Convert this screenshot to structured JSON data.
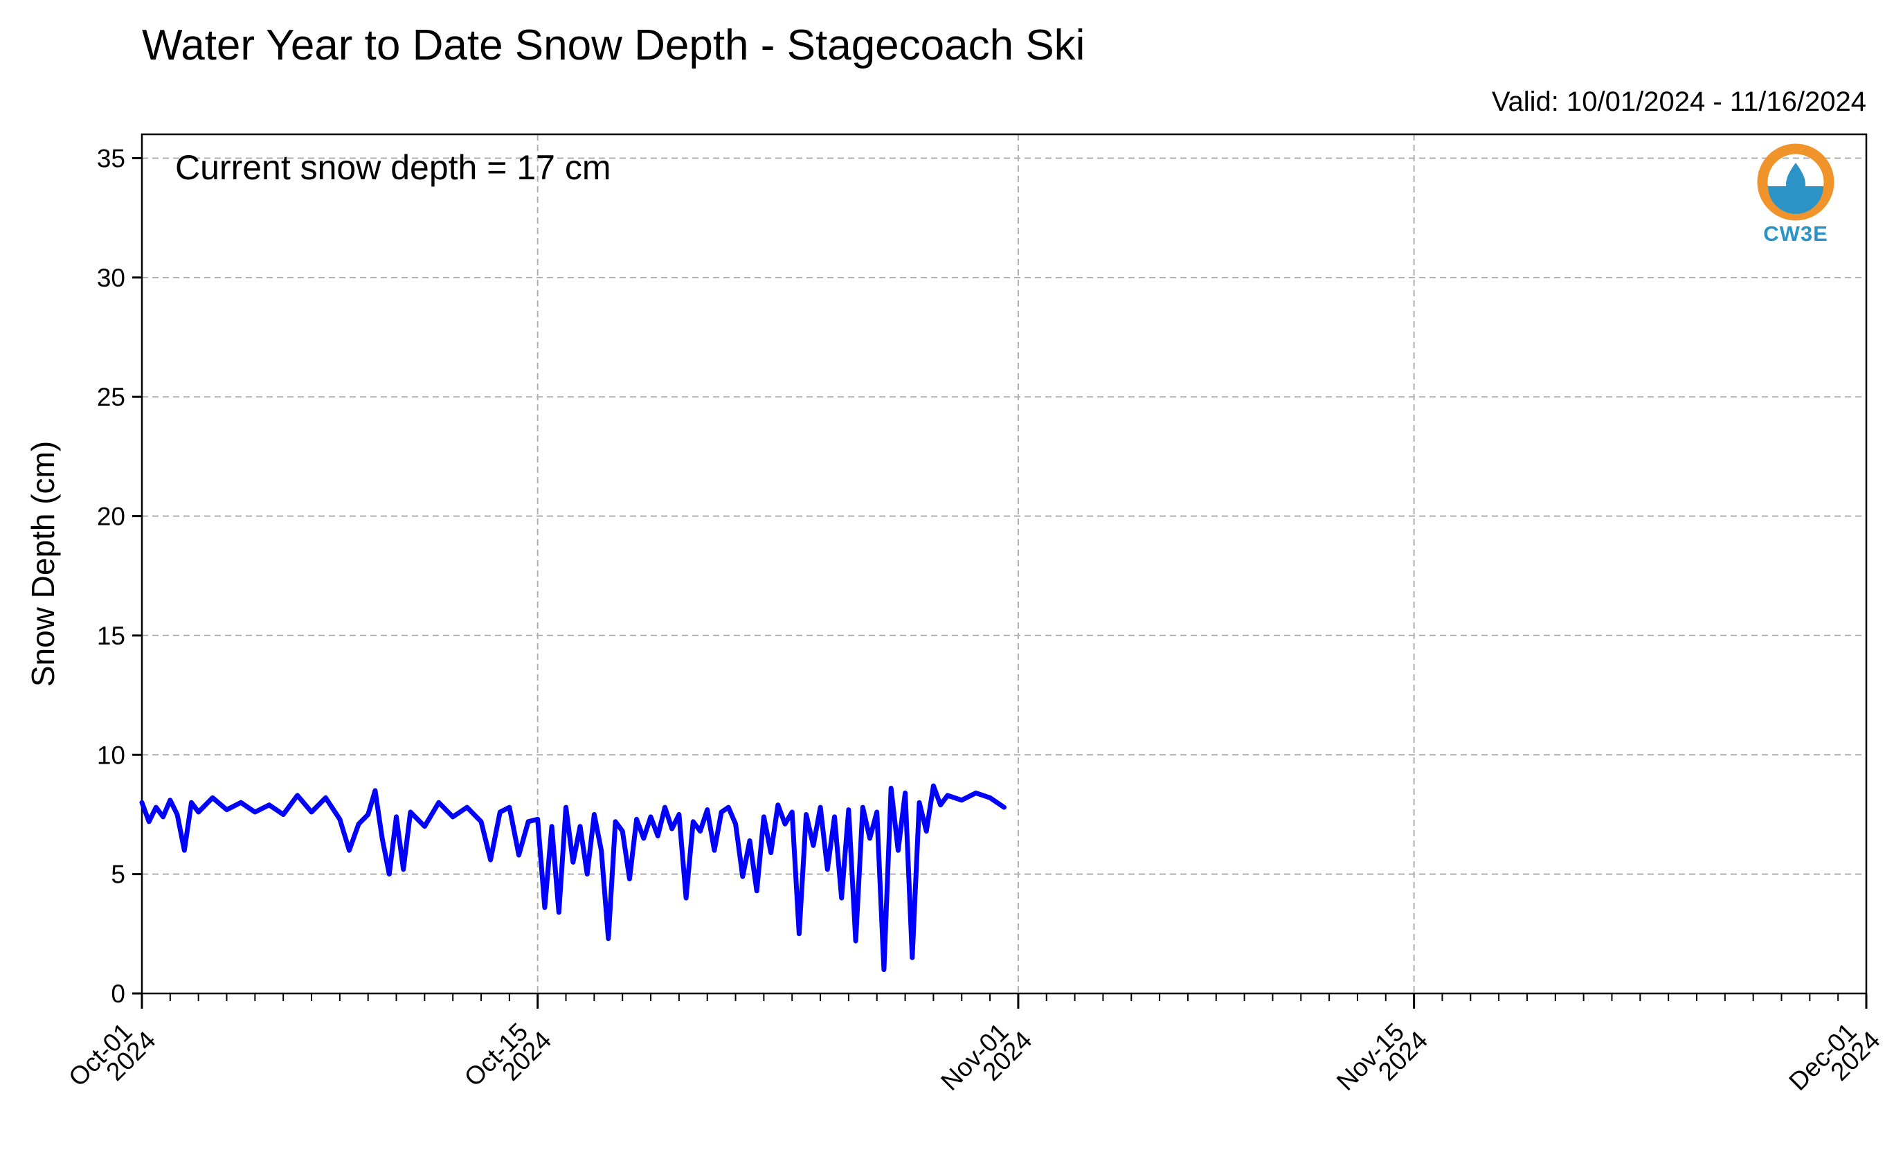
{
  "title": "Water Year to Date Snow Depth - Stagecoach Ski",
  "valid_text": "Valid: 10/01/2024 - 11/16/2024",
  "annotation": "Current snow depth = 17 cm",
  "logo_text": "CW3E",
  "colors": {
    "series": "#0000ff",
    "grid": "#b0b0b0",
    "logo_orange": "#f0932b",
    "logo_blue": "#2b93c6"
  },
  "chart_data": {
    "type": "line",
    "title": "Water Year to Date Snow Depth - Stagecoach Ski",
    "ylabel": "Snow Depth (cm)",
    "xlabel": "",
    "ylim": [
      0,
      36
    ],
    "xlim": [
      "2024-10-01",
      "2024-12-01"
    ],
    "grid": true,
    "y_ticks": [
      0,
      5,
      10,
      15,
      20,
      25,
      30,
      35
    ],
    "x_ticks": [
      {
        "date": "2024-10-01",
        "line1": "Oct-01",
        "line2": "2024"
      },
      {
        "date": "2024-10-15",
        "line1": "Oct-15",
        "line2": "2024"
      },
      {
        "date": "2024-11-01",
        "line1": "Nov-01",
        "line2": "2024"
      },
      {
        "date": "2024-11-15",
        "line1": "Nov-15",
        "line2": "2024"
      },
      {
        "date": "2024-12-01",
        "line1": "Dec-01",
        "line2": "2024"
      }
    ],
    "series": [
      {
        "values": [
          [
            "2024-10-01 00:00",
            8.0
          ],
          [
            "2024-10-01 06:00",
            7.2
          ],
          [
            "2024-10-01 12:00",
            7.8
          ],
          [
            "2024-10-01 18:00",
            7.4
          ],
          [
            "2024-10-02 00:00",
            8.1
          ],
          [
            "2024-10-02 06:00",
            7.5
          ],
          [
            "2024-10-02 12:00",
            6.0
          ],
          [
            "2024-10-02 18:00",
            8.0
          ],
          [
            "2024-10-03 00:00",
            7.6
          ],
          [
            "2024-10-03 12:00",
            8.2
          ],
          [
            "2024-10-04 00:00",
            7.7
          ],
          [
            "2024-10-04 12:00",
            8.0
          ],
          [
            "2024-10-05 00:00",
            7.6
          ],
          [
            "2024-10-05 12:00",
            7.9
          ],
          [
            "2024-10-06 00:00",
            7.5
          ],
          [
            "2024-10-06 12:00",
            8.3
          ],
          [
            "2024-10-07 00:00",
            7.6
          ],
          [
            "2024-10-07 12:00",
            8.2
          ],
          [
            "2024-10-08 00:00",
            7.3
          ],
          [
            "2024-10-08 08:00",
            6.0
          ],
          [
            "2024-10-08 16:00",
            7.1
          ],
          [
            "2024-10-09 00:00",
            7.5
          ],
          [
            "2024-10-09 06:00",
            8.5
          ],
          [
            "2024-10-09 12:00",
            6.5
          ],
          [
            "2024-10-09 18:00",
            5.0
          ],
          [
            "2024-10-10 00:00",
            7.4
          ],
          [
            "2024-10-10 06:00",
            5.2
          ],
          [
            "2024-10-10 12:00",
            7.6
          ],
          [
            "2024-10-11 00:00",
            7.0
          ],
          [
            "2024-10-11 12:00",
            8.0
          ],
          [
            "2024-10-12 00:00",
            7.4
          ],
          [
            "2024-10-12 12:00",
            7.8
          ],
          [
            "2024-10-13 00:00",
            7.2
          ],
          [
            "2024-10-13 08:00",
            5.6
          ],
          [
            "2024-10-13 16:00",
            7.6
          ],
          [
            "2024-10-14 00:00",
            7.8
          ],
          [
            "2024-10-14 08:00",
            5.8
          ],
          [
            "2024-10-14 16:00",
            7.2
          ],
          [
            "2024-10-15 00:00",
            7.3
          ],
          [
            "2024-10-15 06:00",
            3.6
          ],
          [
            "2024-10-15 12:00",
            7.0
          ],
          [
            "2024-10-15 18:00",
            3.4
          ],
          [
            "2024-10-16 00:00",
            7.8
          ],
          [
            "2024-10-16 06:00",
            5.5
          ],
          [
            "2024-10-16 12:00",
            7.0
          ],
          [
            "2024-10-16 18:00",
            5.0
          ],
          [
            "2024-10-17 00:00",
            7.5
          ],
          [
            "2024-10-17 06:00",
            6.0
          ],
          [
            "2024-10-17 12:00",
            2.3
          ],
          [
            "2024-10-17 18:00",
            7.2
          ],
          [
            "2024-10-18 00:00",
            6.8
          ],
          [
            "2024-10-18 06:00",
            4.8
          ],
          [
            "2024-10-18 12:00",
            7.3
          ],
          [
            "2024-10-18 18:00",
            6.5
          ],
          [
            "2024-10-19 00:00",
            7.4
          ],
          [
            "2024-10-19 06:00",
            6.6
          ],
          [
            "2024-10-19 12:00",
            7.8
          ],
          [
            "2024-10-19 18:00",
            6.9
          ],
          [
            "2024-10-20 00:00",
            7.5
          ],
          [
            "2024-10-20 06:00",
            4.0
          ],
          [
            "2024-10-20 12:00",
            7.2
          ],
          [
            "2024-10-20 18:00",
            6.8
          ],
          [
            "2024-10-21 00:00",
            7.7
          ],
          [
            "2024-10-21 06:00",
            6.0
          ],
          [
            "2024-10-21 12:00",
            7.6
          ],
          [
            "2024-10-21 18:00",
            7.8
          ],
          [
            "2024-10-22 00:00",
            7.1
          ],
          [
            "2024-10-22 06:00",
            4.9
          ],
          [
            "2024-10-22 12:00",
            6.4
          ],
          [
            "2024-10-22 18:00",
            4.3
          ],
          [
            "2024-10-23 00:00",
            7.4
          ],
          [
            "2024-10-23 06:00",
            5.9
          ],
          [
            "2024-10-23 12:00",
            7.9
          ],
          [
            "2024-10-23 18:00",
            7.1
          ],
          [
            "2024-10-24 00:00",
            7.6
          ],
          [
            "2024-10-24 06:00",
            2.5
          ],
          [
            "2024-10-24 12:00",
            7.5
          ],
          [
            "2024-10-24 18:00",
            6.2
          ],
          [
            "2024-10-25 00:00",
            7.8
          ],
          [
            "2024-10-25 06:00",
            5.2
          ],
          [
            "2024-10-25 12:00",
            7.4
          ],
          [
            "2024-10-25 18:00",
            4.0
          ],
          [
            "2024-10-26 00:00",
            7.7
          ],
          [
            "2024-10-26 06:00",
            2.2
          ],
          [
            "2024-10-26 12:00",
            7.8
          ],
          [
            "2024-10-26 18:00",
            6.5
          ],
          [
            "2024-10-27 00:00",
            7.6
          ],
          [
            "2024-10-27 06:00",
            1.0
          ],
          [
            "2024-10-27 12:00",
            8.6
          ],
          [
            "2024-10-27 18:00",
            6.0
          ],
          [
            "2024-10-28 00:00",
            8.4
          ],
          [
            "2024-10-28 06:00",
            1.5
          ],
          [
            "2024-10-28 12:00",
            8.0
          ],
          [
            "2024-10-28 18:00",
            6.8
          ],
          [
            "2024-10-29 00:00",
            8.7
          ],
          [
            "2024-10-29 06:00",
            7.9
          ],
          [
            "2024-10-29 12:00",
            8.3
          ],
          [
            "2024-10-30 00:00",
            8.1
          ],
          [
            "2024-10-30 12:00",
            8.4
          ],
          [
            "2024-10-31 00:00",
            8.2
          ],
          [
            "2024-10-31 12:00",
            7.8
          ]
        ]
      }
    ],
    "values": [
      [
        "2024-10-01",
        7.8
      ],
      [
        "2024-10-02",
        7.9
      ],
      [
        "2024-10-03",
        7.8
      ],
      [
        "2024-10-04",
        7.9
      ],
      [
        "2024-10-05",
        7.7
      ],
      [
        "2024-10-06",
        7.8
      ],
      [
        "2024-10-07",
        7.7
      ],
      [
        "2024-10-08",
        7.3
      ],
      [
        "2024-10-09",
        7.4
      ],
      [
        "2024-10-10",
        7.2
      ],
      [
        "2024-10-11",
        7.5
      ],
      [
        "2024-10-12",
        7.5
      ],
      [
        "2024-10-13",
        7.2
      ],
      [
        "2024-10-14",
        7.1
      ],
      [
        "2024-10-15",
        6.5
      ],
      [
        "2024-10-16",
        6.4
      ],
      [
        "2024-10-17",
        5.8
      ],
      [
        "2024-10-18",
        6.5
      ],
      [
        "2024-10-19",
        7.1
      ],
      [
        "2024-10-20",
        6.8
      ],
      [
        "2024-10-21",
        7.2
      ],
      [
        "2024-10-22",
        6.2
      ],
      [
        "2024-10-23",
        7.1
      ],
      [
        "2024-10-24",
        6.9
      ],
      [
        "2024-10-25",
        6.8
      ],
      [
        "2024-10-26",
        6.5
      ],
      [
        "2024-10-27",
        6.8
      ],
      [
        "2024-10-28",
        7.2
      ],
      [
        "2024-10-29",
        8.0
      ],
      [
        "2024-10-30",
        8.2
      ],
      [
        "2024-10-31",
        8.0
      ]
    ]
  }
}
